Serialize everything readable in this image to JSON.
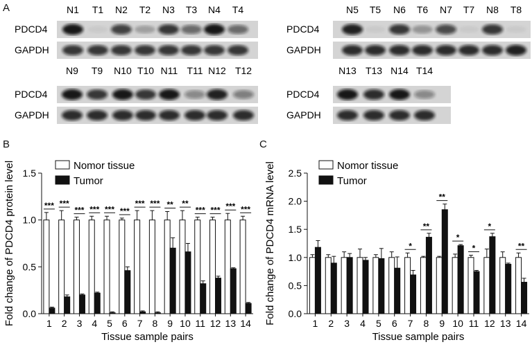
{
  "panels": {
    "a": "A",
    "b": "B",
    "c": "C"
  },
  "blots": [
    {
      "lanes": [
        "N1",
        "T1",
        "N2",
        "T2",
        "N3",
        "T3",
        "N4",
        "T4"
      ],
      "rows": [
        "PDCD4",
        "GAPDH"
      ],
      "pdcd4": [
        0.95,
        0.05,
        0.75,
        0.25,
        0.8,
        0.55,
        0.95,
        0.55
      ],
      "gapdh": [
        0.8,
        0.8,
        0.8,
        0.8,
        0.8,
        0.8,
        0.8,
        0.8
      ]
    },
    {
      "lanes": [
        "N5",
        "T5",
        "N6",
        "T6",
        "N7",
        "T7",
        "N8",
        "T8"
      ],
      "rows": [
        "PDCD4",
        "GAPDH"
      ],
      "pdcd4": [
        0.9,
        0.02,
        0.8,
        0.3,
        0.7,
        0.02,
        0.8,
        0.02
      ],
      "gapdh": [
        0.85,
        0.85,
        0.85,
        0.85,
        0.85,
        0.85,
        0.85,
        0.9
      ]
    },
    {
      "lanes": [
        "N9",
        "T9",
        "N10",
        "T10",
        "N11",
        "T11",
        "N12",
        "T12"
      ],
      "rows": [
        "PDCD4",
        "GAPDH"
      ],
      "pdcd4": [
        0.95,
        0.8,
        0.95,
        0.8,
        0.95,
        0.4,
        0.9,
        0.45
      ],
      "gapdh": [
        0.85,
        0.85,
        0.85,
        0.85,
        0.85,
        0.85,
        0.85,
        0.85
      ]
    },
    {
      "lanes": [
        "N13",
        "T13",
        "N14",
        "T14"
      ],
      "rows": [
        "PDCD4",
        "GAPDH"
      ],
      "pdcd4": [
        0.95,
        0.85,
        0.95,
        0.4
      ],
      "gapdh": [
        0.85,
        0.85,
        0.85,
        0.85
      ]
    }
  ],
  "chart_data": [
    {
      "type": "bar",
      "categories": [
        "1",
        "2",
        "3",
        "4",
        "5",
        "6",
        "7",
        "8",
        "9",
        "10",
        "11",
        "12",
        "13",
        "14"
      ],
      "series": [
        {
          "name": "Nomor tissue",
          "values": [
            1.0,
            1.0,
            1.0,
            1.0,
            1.0,
            1.0,
            1.0,
            1.0,
            1.0,
            1.0,
            1.0,
            1.0,
            1.0,
            1.0
          ],
          "errors": [
            0.08,
            0.1,
            0.03,
            0.04,
            0.04,
            0.02,
            0.1,
            0.1,
            0.09,
            0.1,
            0.03,
            0.03,
            0.07,
            0.04
          ]
        },
        {
          "name": "Tumor",
          "values": [
            0.06,
            0.18,
            0.2,
            0.22,
            0.01,
            0.46,
            0.02,
            0.01,
            0.7,
            0.66,
            0.32,
            0.38,
            0.48,
            0.11
          ],
          "errors": [
            0.01,
            0.02,
            0.01,
            0.01,
            0.01,
            0.04,
            0.01,
            0.01,
            0.11,
            0.09,
            0.03,
            0.02,
            0.01,
            0.01
          ]
        }
      ],
      "significance": [
        "***",
        "***",
        "***",
        "***",
        "***",
        "***",
        "***",
        "***",
        "**",
        "**",
        "***",
        "***",
        "***",
        "***"
      ],
      "xlabel": "Tissue sample pairs",
      "ylabel": "Fold change of PDCD4 protein level",
      "ylim": [
        0,
        1.5
      ],
      "yticks": [
        "0.0",
        "0.5",
        "1.0",
        "1.5"
      ],
      "legend": "top-left"
    },
    {
      "type": "bar",
      "categories": [
        "1",
        "2",
        "3",
        "4",
        "5",
        "6",
        "7",
        "8",
        "9",
        "10",
        "11",
        "12",
        "13",
        "14"
      ],
      "series": [
        {
          "name": "Nomor tissue",
          "values": [
            1.0,
            1.0,
            1.0,
            1.0,
            1.0,
            1.0,
            1.0,
            1.0,
            1.0,
            1.0,
            1.0,
            1.0,
            1.0,
            1.0
          ],
          "errors": [
            0.05,
            0.05,
            0.1,
            0.15,
            0.05,
            0.1,
            0.08,
            0.02,
            0.02,
            0.06,
            0.04,
            0.15,
            0.1,
            0.08
          ]
        },
        {
          "name": "Tumor",
          "values": [
            1.18,
            0.9,
            1.0,
            0.95,
            0.98,
            0.81,
            0.69,
            1.36,
            1.85,
            1.21,
            0.75,
            1.37,
            0.88,
            0.56
          ],
          "errors": [
            0.12,
            0.12,
            0.07,
            0.05,
            0.18,
            0.2,
            0.08,
            0.07,
            0.1,
            0.02,
            0.02,
            0.06,
            0.02,
            0.07
          ]
        }
      ],
      "significance": [
        "",
        "",
        "",
        "",
        "",
        "",
        "*",
        "**",
        "**",
        "*",
        "*",
        "*",
        "",
        "**"
      ],
      "xlabel": "Tissue sample pairs",
      "ylabel": "Fold change of PDCD4 mRNA level",
      "ylim": [
        0,
        2.5
      ],
      "yticks": [
        "0.0",
        "0.5",
        "1.0",
        "1.5",
        "2.0",
        "2.5"
      ],
      "legend": "top-left"
    }
  ]
}
